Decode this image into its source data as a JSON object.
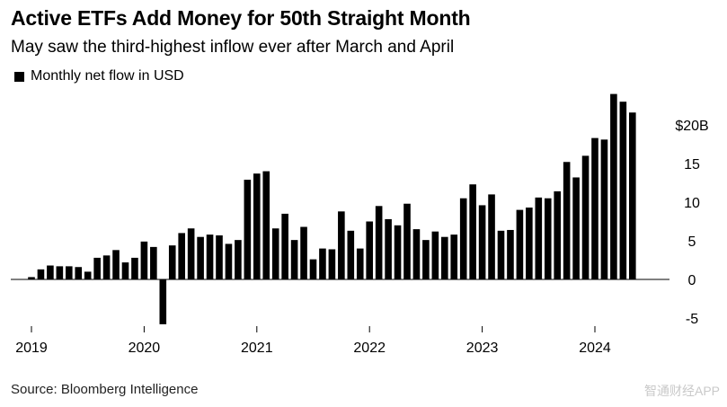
{
  "title": "Active ETFs Add Money for 50th Straight Month",
  "subtitle": "May saw the third-highest inflow ever after March and April",
  "source": "Source: Bloomberg Intelligence",
  "watermark": "智通财经APP",
  "colors": {
    "bar": "#000000",
    "axis": "#000000",
    "text": "#000000"
  },
  "chart_data": {
    "type": "bar",
    "title": "Active ETFs Add Money for 50th Straight Month",
    "subtitle": "May saw the third-highest inflow ever after March and April",
    "legend": [
      "Monthly net flow in USD"
    ],
    "legend_position": "top-left",
    "xlabel": "",
    "ylabel": "",
    "ylim": [
      -6,
      24
    ],
    "y_ticks": [
      20,
      15,
      10,
      5,
      0,
      -5
    ],
    "y_tick_labels": [
      "$20B",
      "15",
      "10",
      "5",
      "0",
      "-5"
    ],
    "y_axis_position": "right",
    "grid": false,
    "x_tick_labels": [
      "2019",
      "2020",
      "2021",
      "2022",
      "2023",
      "2024"
    ],
    "categories": [
      "2019-01",
      "2019-02",
      "2019-03",
      "2019-04",
      "2019-05",
      "2019-06",
      "2019-07",
      "2019-08",
      "2019-09",
      "2019-10",
      "2019-11",
      "2019-12",
      "2020-01",
      "2020-02",
      "2020-03",
      "2020-04",
      "2020-05",
      "2020-06",
      "2020-07",
      "2020-08",
      "2020-09",
      "2020-10",
      "2020-11",
      "2020-12",
      "2021-01",
      "2021-02",
      "2021-03",
      "2021-04",
      "2021-05",
      "2021-06",
      "2021-07",
      "2021-08",
      "2021-09",
      "2021-10",
      "2021-11",
      "2021-12",
      "2022-01",
      "2022-02",
      "2022-03",
      "2022-04",
      "2022-05",
      "2022-06",
      "2022-07",
      "2022-08",
      "2022-09",
      "2022-10",
      "2022-11",
      "2022-12",
      "2023-01",
      "2023-02",
      "2023-03",
      "2023-04",
      "2023-05",
      "2023-06",
      "2023-07",
      "2023-08",
      "2023-09",
      "2023-10",
      "2023-11",
      "2023-12",
      "2024-01",
      "2024-02",
      "2024-03",
      "2024-04",
      "2024-05"
    ],
    "values": [
      0.3,
      1.3,
      1.8,
      1.7,
      1.7,
      1.6,
      1.0,
      2.8,
      3.1,
      3.8,
      2.2,
      2.8,
      4.9,
      4.2,
      -5.8,
      4.4,
      6.0,
      6.6,
      5.5,
      5.8,
      5.7,
      4.6,
      5.1,
      12.9,
      13.7,
      14.0,
      6.6,
      8.5,
      5.1,
      6.8,
      2.6,
      4.0,
      3.9,
      8.8,
      6.3,
      4.0,
      7.5,
      9.5,
      7.8,
      7.0,
      9.8,
      6.5,
      5.1,
      6.2,
      5.5,
      5.8,
      10.5,
      12.3,
      9.6,
      11.0,
      6.3,
      6.4,
      9.0,
      9.3,
      10.6,
      10.5,
      11.4,
      15.2,
      13.2,
      16.0,
      18.3,
      18.1,
      24.0,
      23.0,
      21.6
    ]
  }
}
